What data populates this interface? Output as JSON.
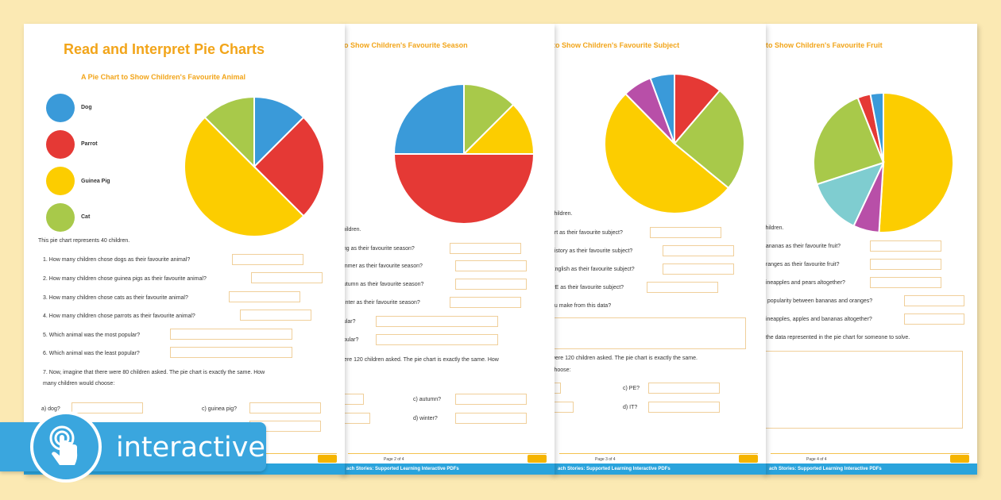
{
  "badge": {
    "label": "interactive",
    "icon": "touch-hand-icon"
  },
  "colors": {
    "blue": "#3a9ad9",
    "red": "#e53935",
    "yellow": "#fccd00",
    "green": "#a8c94a",
    "purple": "#b84fa8",
    "teal": "#7fcdd0",
    "orange_title": "#f2a51a",
    "footer_bar": "#29a3dc"
  },
  "sheet1": {
    "title": "Read and Interpret Pie Charts",
    "chart_title": "A Pie Chart to Show Children's Favourite Animal",
    "legend": [
      {
        "label": "Dog",
        "color": "#3a9ad9"
      },
      {
        "label": "Parrot",
        "color": "#e53935"
      },
      {
        "label": "Guinea Pig",
        "color": "#fccd00"
      },
      {
        "label": "Cat",
        "color": "#a8c94a"
      }
    ],
    "intro": "This pie chart represents 40 children.",
    "questions": [
      "1.   How many children chose dogs as their favourite animal?",
      "2.   How many children chose guinea pigs as their favourite animal?",
      "3.   How many children chose cats as their favourite animal?",
      "4.   How many children chose parrots as their favourite animal?",
      "5.   Which animal was the most popular?",
      "6.   Which animal was the least popular?",
      "7.   Now, imagine that there were 80 children asked. The pie chart is exactly the same. How",
      "       many children would choose:"
    ],
    "sub_a": "a)   dog?",
    "sub_c": "c)   guinea pig?"
  },
  "sheet2": {
    "chart_title": "to Show Children's Favourite Season",
    "lines": [
      "children.",
      "ring as their favourite season?",
      "ummer as their favourite season?",
      "autumn as their favourite season?",
      "winter as their favourite season?",
      "pular?",
      "opular?",
      "were 120 children asked. The pie chart is exactly the same. How"
    ],
    "sub_c": "c)   autumn?",
    "sub_d": "d)   winter?",
    "footer": "Page 2 of 4",
    "bar": "ach Stories: Supported Learning Interactive PDFs"
  },
  "sheet3": {
    "chart_title": "to Show Children's Favourite Subject",
    "lines": [
      "children.",
      "art as their favourite subject?",
      "history as their favourite subject?",
      "English as their favourite subject?",
      "PE as their favourite subject?",
      "ou make from this data?",
      "were 120 children asked. The pie chart is exactly the same.",
      "choose:"
    ],
    "sub_c": "c)   PE?",
    "sub_d": "d)   IT?",
    "footer": "Page 3 of 4",
    "bar": "ach Stories: Supported Learning Interactive PDFs"
  },
  "sheet4": {
    "chart_title": "to Show Children's Favourite Fruit",
    "lines": [
      "children.",
      "bananas as their favourite fruit?",
      "oranges as their favourite fruit?",
      "pineapples and pears altogether?",
      "n popularity between bananas and oranges?",
      "pineapples, apples and bananas altogether?",
      "f the data represented in the pie chart for someone to solve."
    ],
    "footer": "Page 4 of 4",
    "bar": "ach Stories: Supported Learning Interactive PDFs"
  },
  "chart_data": [
    {
      "type": "pie",
      "title": "A Pie Chart to Show Children's Favourite Animal",
      "categories": [
        "Dog",
        "Parrot",
        "Guinea Pig",
        "Cat"
      ],
      "values": [
        5,
        10,
        20,
        5
      ],
      "colors": [
        "#3a9ad9",
        "#e53935",
        "#fccd00",
        "#a8c94a"
      ]
    },
    {
      "type": "pie",
      "title": "to Show Children's Favourite Season",
      "values": [
        12.5,
        12.5,
        50,
        25
      ],
      "colors": [
        "#a8c94a",
        "#fccd00",
        "#e53935",
        "#3a9ad9"
      ]
    },
    {
      "type": "pie",
      "title": "to Show Children's Favourite Subject",
      "values": [
        10,
        22,
        46,
        6,
        5
      ],
      "colors": [
        "#e53935",
        "#a8c94a",
        "#fccd00",
        "#b84fa8",
        "#3a9ad9"
      ]
    },
    {
      "type": "pie",
      "title": "to Show Children's Favourite Fruit",
      "values": [
        51,
        6,
        13,
        24,
        3,
        3
      ],
      "colors": [
        "#fccd00",
        "#b84fa8",
        "#7fcdd0",
        "#a8c94a",
        "#e53935",
        "#3a9ad9"
      ]
    }
  ]
}
